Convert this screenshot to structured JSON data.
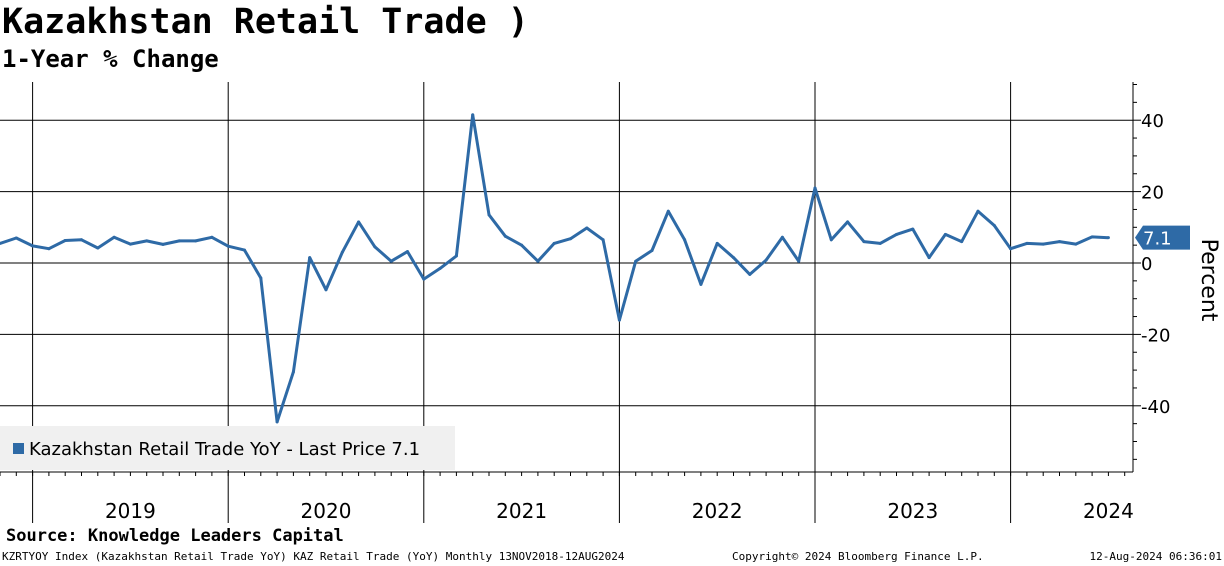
{
  "header": {
    "title": "Kazakhstan Retail Trade )",
    "subtitle": "1-Year % Change"
  },
  "source": "Source: Knowledge Leaders Capital",
  "footer": {
    "left": "KZRTYOY Index (Kazakhstan Retail Trade YoY) KAZ Retail Trade (YoY)  Monthly 13NOV2018-12AUG2024",
    "middle": "Copyright© 2024 Bloomberg Finance L.P.",
    "right": "12-Aug-2024 06:36:01"
  },
  "colors": {
    "series": "#2e6aa6",
    "grid": "#000000",
    "legend_bg": "#f0f0f0"
  },
  "chart_data": {
    "type": "line",
    "title": "Kazakhstan Retail Trade )",
    "subtitle": "1-Year % Change",
    "xlabel": "",
    "ylabel": "Percent",
    "ylim": [
      -58,
      51
    ],
    "yticks": [
      40,
      20,
      0,
      -20,
      -40
    ],
    "ytick_labels": [
      "40",
      "20",
      "0",
      "-20",
      "-40"
    ],
    "year_labels": [
      "2019",
      "2020",
      "2021",
      "2022",
      "2023",
      "2024"
    ],
    "grid": true,
    "legend": {
      "label": "Kazakhstan Retail Trade YoY - Last Price 7.1",
      "position": "bottom-left"
    },
    "last_price": {
      "value": 7.1,
      "label": "7.1"
    },
    "x_start": "2018-11",
    "series": [
      {
        "name": "Kazakhstan Retail Trade YoY",
        "values": [
          5.5,
          7.0,
          4.8,
          4.0,
          6.3,
          6.5,
          4.2,
          7.2,
          5.3,
          6.2,
          5.2,
          6.2,
          6.2,
          7.2,
          4.7,
          3.6,
          -4.2,
          -44.5,
          -30.5,
          1.5,
          -7.5,
          3.0,
          11.5,
          4.5,
          0.5,
          3.2,
          -4.5,
          -1.5,
          2.0,
          41.5,
          13.5,
          7.5,
          5.0,
          0.5,
          5.5,
          6.8,
          9.8,
          6.5,
          -16.0,
          0.5,
          3.5,
          14.5,
          6.5,
          -6.0,
          5.5,
          1.5,
          -3.2,
          0.8,
          7.2,
          0.5,
          21.0,
          6.5,
          11.5,
          6.0,
          5.5,
          8.0,
          9.5,
          1.5,
          8.0,
          6.0,
          14.5,
          10.5,
          4.0,
          5.5,
          5.3,
          6.0,
          5.3,
          7.3,
          7.1
        ]
      }
    ]
  }
}
